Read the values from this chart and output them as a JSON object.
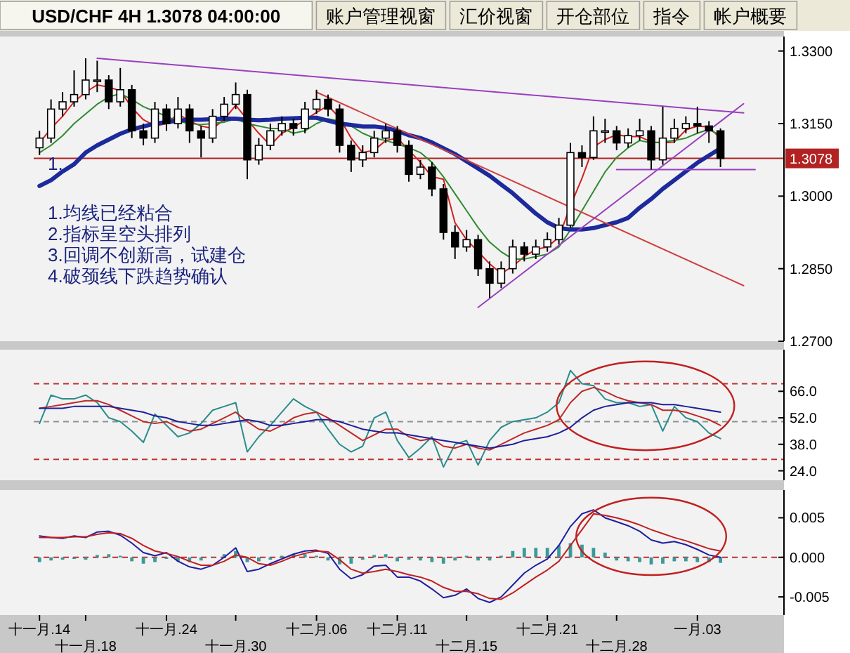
{
  "chart_data": [
    {
      "type": "other",
      "title": "USD/CHF 4H 1.3078 04:00:00",
      "annotations": [
        "账户管理视窗",
        "汇价视窗",
        "开仓部位",
        "指令",
        "帐户概要"
      ]
    },
    {
      "type": "candlestick",
      "annotations": [
        "1.",
        "1.均线已经粘合",
        "2.指标呈空头排列",
        "3.回调不创新高，试建仓",
        "4.破颈线下跌趋势确认"
      ],
      "categories": [
        null,
        null,
        null,
        null,
        null,
        null,
        null,
        null,
        null,
        null,
        null,
        null,
        null,
        null,
        null,
        null,
        null,
        null,
        null,
        null,
        null,
        null,
        null,
        null,
        null,
        null,
        null,
        null,
        null,
        null,
        null,
        null,
        null,
        null,
        null,
        null,
        null,
        null,
        null,
        null,
        null,
        null,
        null,
        null,
        null,
        null,
        null,
        null,
        null,
        null,
        null,
        null,
        null,
        null,
        null,
        null,
        null,
        null,
        null,
        null,
        null,
        null,
        null,
        null,
        null
      ],
      "ylim": [
        1.27,
        1.333
      ],
      "yticks": [
        {
          "value": 1.27,
          "label": "1.2700"
        },
        {
          "value": 1.285,
          "label": "1.2850"
        },
        {
          "value": 1.3,
          "label": "1.3000"
        },
        {
          "value": 1.315,
          "label": "1.3150"
        },
        {
          "value": 1.33,
          "label": "1.3300"
        }
      ],
      "ohlc": [
        [
          1.31,
          1.3135,
          1.3085,
          1.312
        ],
        [
          1.312,
          1.32,
          1.311,
          1.318
        ],
        [
          1.318,
          1.3215,
          1.3165,
          1.3195
        ],
        [
          1.3195,
          1.326,
          1.3185,
          1.321
        ],
        [
          1.321,
          1.3285,
          1.32,
          1.324
        ],
        [
          1.324,
          1.328,
          1.3215,
          1.324
        ],
        [
          1.324,
          1.325,
          1.318,
          1.3195
        ],
        [
          1.3195,
          1.3265,
          1.3185,
          1.322
        ],
        [
          1.322,
          1.323,
          1.312,
          1.3135
        ],
        [
          1.3135,
          1.315,
          1.3105,
          1.312
        ],
        [
          1.312,
          1.3195,
          1.311,
          1.318
        ],
        [
          1.318,
          1.319,
          1.3135,
          1.315
        ],
        [
          1.315,
          1.3205,
          1.314,
          1.318
        ],
        [
          1.318,
          1.319,
          1.311,
          1.3135
        ],
        [
          1.3135,
          1.3145,
          1.308,
          1.312
        ],
        [
          1.312,
          1.318,
          1.311,
          1.3165
        ],
        [
          1.3165,
          1.3205,
          1.3155,
          1.319
        ],
        [
          1.319,
          1.3235,
          1.318,
          1.321
        ],
        [
          1.321,
          1.322,
          1.3035,
          1.3075
        ],
        [
          1.3075,
          1.312,
          1.3065,
          1.3105
        ],
        [
          1.3105,
          1.315,
          1.3095,
          1.3135
        ],
        [
          1.3135,
          1.3165,
          1.3125,
          1.315
        ],
        [
          1.315,
          1.316,
          1.3125,
          1.314
        ],
        [
          1.314,
          1.3195,
          1.313,
          1.318
        ],
        [
          1.318,
          1.322,
          1.317,
          1.32
        ],
        [
          1.32,
          1.321,
          1.3165,
          1.318
        ],
        [
          1.318,
          1.319,
          1.309,
          1.3105
        ],
        [
          1.3105,
          1.3115,
          1.305,
          1.3075
        ],
        [
          1.3075,
          1.3105,
          1.306,
          1.309
        ],
        [
          1.309,
          1.3135,
          1.308,
          1.312
        ],
        [
          1.312,
          1.315,
          1.311,
          1.3135
        ],
        [
          1.3135,
          1.3145,
          1.309,
          1.3105
        ],
        [
          1.3105,
          1.3115,
          1.303,
          1.3045
        ],
        [
          1.3045,
          1.3075,
          1.3035,
          1.306
        ],
        [
          1.306,
          1.307,
          1.3,
          1.3015
        ],
        [
          1.3015,
          1.3025,
          1.291,
          1.2925
        ],
        [
          1.2925,
          1.294,
          1.287,
          1.2895
        ],
        [
          1.2895,
          1.293,
          1.2885,
          1.291
        ],
        [
          1.291,
          1.292,
          1.2835,
          1.285
        ],
        [
          1.285,
          1.2865,
          1.279,
          1.282
        ],
        [
          1.282,
          1.2865,
          1.281,
          1.285
        ],
        [
          1.285,
          1.291,
          1.284,
          1.2895
        ],
        [
          1.2895,
          1.2905,
          1.2865,
          1.288
        ],
        [
          1.288,
          1.291,
          1.287,
          1.2895
        ],
        [
          1.2895,
          1.2925,
          1.2885,
          1.291
        ],
        [
          1.291,
          1.2955,
          1.29,
          1.294
        ],
        [
          1.294,
          1.311,
          1.2935,
          1.309
        ],
        [
          1.309,
          1.3105,
          1.306,
          1.308
        ],
        [
          1.308,
          1.3165,
          1.3075,
          1.3135
        ],
        [
          1.3135,
          1.316,
          1.311,
          1.3135
        ],
        [
          1.3135,
          1.3145,
          1.3095,
          1.311
        ],
        [
          1.311,
          1.314,
          1.31,
          1.3125
        ],
        [
          1.3125,
          1.316,
          1.3115,
          1.3135
        ],
        [
          1.3135,
          1.3145,
          1.3055,
          1.3075
        ],
        [
          1.3075,
          1.3185,
          1.3065,
          1.312
        ],
        [
          1.312,
          1.316,
          1.311,
          1.314
        ],
        [
          1.314,
          1.3165,
          1.313,
          1.315
        ],
        [
          1.315,
          1.3185,
          1.313,
          1.3145
        ],
        [
          1.3145,
          1.3155,
          1.311,
          1.3135
        ],
        [
          1.3135,
          1.314,
          1.306,
          1.3078
        ],
        null,
        null,
        null,
        null,
        null
      ],
      "series": [
        {
          "type": "line",
          "color": "#d42020",
          "values": [
            1.311,
            1.314,
            1.3165,
            1.3195,
            1.3215,
            1.323,
            1.3225,
            1.3218,
            1.3183,
            1.3158,
            1.3145,
            1.315,
            1.317,
            1.3155,
            1.3145,
            1.314,
            1.3158,
            1.3188,
            1.3158,
            1.313,
            1.3105,
            1.313,
            1.3142,
            1.3157,
            1.3173,
            1.3187,
            1.3162,
            1.312,
            1.309,
            1.3095,
            1.3115,
            1.312,
            1.3095,
            1.307,
            1.304,
            1.3035,
            1.2945,
            1.291,
            1.2885,
            1.286,
            1.284,
            1.2855,
            1.2875,
            1.289,
            1.2895,
            1.2915,
            1.298,
            1.3037,
            1.3102,
            1.3117,
            1.3127,
            1.3123,
            1.3123,
            1.3112,
            1.311,
            1.3112,
            1.3137,
            1.3145,
            1.3143,
            1.3119,
            null,
            null,
            null,
            null,
            null
          ]
        },
        {
          "type": "line",
          "color": "#2e8b2e",
          "values": [
            1.309,
            1.3105,
            1.3125,
            1.315,
            1.317,
            1.319,
            1.3205,
            1.3212,
            1.32,
            1.3185,
            1.3175,
            1.3165,
            1.3155,
            1.315,
            1.3148,
            1.315,
            1.3153,
            1.316,
            1.315,
            1.3145,
            1.314,
            1.314,
            1.313,
            1.3135,
            1.315,
            1.316,
            1.3155,
            1.3145,
            1.313,
            1.312,
            1.3115,
            1.3108,
            1.31,
            1.309,
            1.307,
            1.304,
            1.3005,
            1.297,
            1.2935,
            1.2905,
            1.2885,
            1.287,
            1.287,
            1.2875,
            1.288,
            1.2895,
            1.293,
            1.297,
            1.301,
            1.305,
            1.308,
            1.31,
            1.3115,
            1.311,
            1.3112,
            1.3115,
            1.312,
            1.313,
            1.3138,
            1.3125,
            null,
            null,
            null,
            null,
            null
          ]
        },
        {
          "type": "line",
          "color": "#1c2a9c",
          "values": [
            1.3021,
            1.3033,
            1.3051,
            1.3066,
            1.309,
            1.3105,
            1.3117,
            1.3129,
            1.3138,
            1.3144,
            1.315,
            1.3153,
            1.3156,
            1.3158,
            1.3158,
            1.3159,
            1.316,
            1.316,
            1.3158,
            1.3157,
            1.3158,
            1.316,
            1.3161,
            1.3162,
            1.3162,
            1.3156,
            1.315,
            1.3147,
            1.3144,
            1.3144,
            1.3141,
            1.3135,
            1.3126,
            1.312,
            1.3111,
            1.3099,
            1.3087,
            1.3072,
            1.3057,
            1.3042,
            1.3024,
            1.3006,
            1.2985,
            1.2964,
            1.2946,
            1.2934,
            1.2931,
            1.2931,
            1.2934,
            1.294,
            1.2946,
            1.2955,
            1.2976,
            1.2994,
            1.3015,
            1.3033,
            1.3051,
            1.3069,
            1.3084,
            1.3099,
            null,
            null,
            null,
            null,
            null
          ]
        },
        {
          "type": "line",
          "color": "#9a3fbf",
          "values": [
            null,
            null,
            null,
            null,
            null,
            1.3285,
            null,
            null,
            null,
            null,
            null,
            null,
            null,
            null,
            null,
            null,
            null,
            null,
            null,
            null,
            null,
            null,
            null,
            null,
            null,
            null,
            null,
            null,
            null,
            null,
            null,
            null,
            null,
            null,
            null,
            null,
            null,
            null,
            null,
            null,
            null,
            null,
            null,
            null,
            null,
            null,
            null,
            null,
            null,
            null,
            null,
            null,
            null,
            null,
            null,
            null,
            null,
            null,
            null,
            null,
            null,
            1.3172,
            null,
            null,
            null
          ]
        },
        {
          "type": "line",
          "color": "#d04040",
          "values": [
            null,
            null,
            null,
            null,
            null,
            null,
            null,
            null,
            null,
            null,
            null,
            null,
            null,
            null,
            null,
            null,
            null,
            null,
            null,
            null,
            null,
            null,
            null,
            null,
            1.3215,
            null,
            null,
            null,
            null,
            null,
            null,
            null,
            null,
            null,
            null,
            null,
            null,
            null,
            null,
            null,
            null,
            null,
            null,
            null,
            null,
            null,
            null,
            null,
            null,
            null,
            null,
            null,
            null,
            null,
            null,
            null,
            null,
            null,
            null,
            null,
            null,
            1.2815,
            null,
            null,
            null
          ]
        },
        {
          "type": "line",
          "color": "#9a3fbf",
          "values": [
            null,
            null,
            null,
            null,
            null,
            null,
            null,
            null,
            null,
            null,
            null,
            null,
            null,
            null,
            null,
            null,
            null,
            null,
            null,
            null,
            null,
            null,
            null,
            null,
            null,
            null,
            null,
            null,
            null,
            null,
            null,
            null,
            null,
            null,
            null,
            null,
            null,
            null,
            1.277,
            null,
            null,
            null,
            null,
            null,
            null,
            null,
            null,
            null,
            null,
            null,
            null,
            null,
            null,
            null,
            null,
            null,
            null,
            null,
            null,
            null,
            null,
            1.3191,
            null,
            null,
            null
          ]
        },
        {
          "type": "line",
          "color": "#9a3fbf",
          "values": [
            null,
            null,
            null,
            null,
            null,
            null,
            null,
            null,
            null,
            null,
            null,
            null,
            null,
            null,
            null,
            null,
            null,
            null,
            null,
            null,
            null,
            null,
            null,
            null,
            null,
            null,
            null,
            null,
            null,
            null,
            null,
            null,
            null,
            null,
            null,
            null,
            null,
            null,
            null,
            null,
            null,
            null,
            null,
            null,
            null,
            null,
            null,
            null,
            null,
            null,
            1.3055,
            null,
            null,
            null,
            null,
            null,
            null,
            null,
            null,
            null,
            null,
            null,
            1.3055,
            null,
            null
          ]
        }
      ],
      "ref_lines": [
        {
          "axis": "y",
          "value": 1.3078,
          "label": "1.3078",
          "color": "#b22222"
        }
      ]
    },
    {
      "type": "line",
      "categories": [
        null,
        null,
        null,
        null,
        null,
        null,
        null,
        null,
        null,
        null,
        null,
        null,
        null,
        null,
        null,
        null,
        null,
        null,
        null,
        null,
        null,
        null,
        null,
        null,
        null,
        null,
        null,
        null,
        null,
        null,
        null,
        null,
        null,
        null,
        null,
        null,
        null,
        null,
        null,
        null,
        null,
        null,
        null,
        null,
        null,
        null,
        null,
        null,
        null,
        null,
        null,
        null,
        null,
        null,
        null,
        null,
        null,
        null,
        null,
        null,
        null,
        null,
        null,
        null,
        null
      ],
      "ylim": [
        19,
        88
      ],
      "yticks": [
        {
          "value": 24,
          "label": "24.0"
        },
        {
          "value": 38,
          "label": "38.0"
        },
        {
          "value": 52,
          "label": "52.0"
        },
        {
          "value": 66,
          "label": "66.0"
        }
      ],
      "series": [
        {
          "color": "#2a8c8c",
          "values": [
            49,
            64,
            62,
            62,
            64,
            60,
            52,
            50,
            45,
            39,
            54,
            48,
            42,
            44,
            49,
            56,
            58,
            60,
            34,
            42,
            48,
            55,
            62,
            58,
            55,
            46,
            38,
            34,
            37,
            52,
            55,
            40,
            31,
            36,
            42,
            26,
            38,
            40,
            27,
            40,
            47,
            50,
            51,
            52,
            55,
            60,
            77,
            70,
            69,
            62,
            60,
            60,
            58,
            59,
            45,
            58,
            52,
            50,
            44,
            41,
            null,
            null,
            null,
            null,
            null
          ]
        },
        {
          "color": "#c02828",
          "values": [
            57,
            58,
            59,
            60,
            61,
            61,
            59,
            56,
            53,
            50,
            49,
            50,
            47,
            45,
            46,
            49,
            52,
            55,
            50,
            46,
            45,
            48,
            52,
            54,
            55,
            52,
            48,
            44,
            40,
            43,
            46,
            46,
            42,
            40,
            41,
            37,
            36,
            38,
            36,
            35,
            38,
            41,
            44,
            46,
            48,
            51,
            60,
            66,
            68,
            66,
            63,
            61,
            60,
            59,
            56,
            56,
            55,
            53,
            51,
            48,
            null,
            null,
            null,
            null,
            null
          ]
        },
        {
          "color": "#1f1f99",
          "values": [
            57,
            57,
            57,
            58,
            58,
            58,
            58,
            57,
            56,
            55,
            53,
            52,
            50,
            49,
            48,
            48,
            49,
            50,
            51,
            50,
            48,
            48,
            49,
            50,
            51,
            51,
            50,
            48,
            46,
            45,
            44,
            44,
            43,
            42,
            41,
            40,
            39,
            38,
            37,
            36,
            37,
            38,
            40,
            41,
            42,
            44,
            47,
            52,
            56,
            58,
            59,
            60,
            60,
            60,
            59,
            59,
            58,
            57,
            56,
            55,
            null,
            null,
            null,
            null,
            null
          ]
        }
      ],
      "ref_lines": [
        {
          "axis": "y",
          "value": 70,
          "color": "#c03030",
          "line_style": "dashed"
        },
        {
          "axis": "y",
          "value": 50,
          "color": "#909090",
          "line_style": "dashed"
        },
        {
          "axis": "y",
          "value": 30,
          "color": "#c03030",
          "line_style": "dashed"
        }
      ]
    },
    {
      "type": "line",
      "categories": [
        "十一月.14",
        null,
        null,
        null,
        "十一月.18",
        null,
        null,
        null,
        null,
        null,
        null,
        "十一月.24",
        null,
        null,
        null,
        null,
        null,
        "十一月.30",
        null,
        null,
        null,
        null,
        null,
        null,
        "十二月.06",
        null,
        null,
        null,
        null,
        null,
        null,
        "十二月.11",
        null,
        null,
        null,
        null,
        null,
        "十二月.15",
        null,
        null,
        null,
        null,
        null,
        null,
        "十二月.21",
        null,
        null,
        null,
        null,
        null,
        "十二月.28",
        null,
        null,
        null,
        null,
        null,
        null,
        "一月.03",
        null,
        null,
        null,
        null,
        null,
        null,
        null
      ],
      "ylim": [
        -0.0073,
        0.0085
      ],
      "yticks": [
        {
          "value": -0.005,
          "label": "-0.005"
        },
        {
          "value": 0,
          "label": "0.000"
        },
        {
          "value": 0.005,
          "label": "0.005"
        }
      ],
      "series": [
        {
          "type": "bar",
          "color": "#3a9a9a",
          "values": [
            -0.0006,
            -0.0004,
            -0.0003,
            -0.0002,
            -0.0003,
            0.0003,
            0.0004,
            0.0002,
            -0.0005,
            -0.0008,
            -0.0006,
            -0.0002,
            -0.0005,
            -0.0006,
            -0.0004,
            0,
            0.0004,
            0.0008,
            -0.0006,
            -0.0005,
            -0.0003,
            0.0002,
            0.0004,
            0.0004,
            0.0002,
            -0.0004,
            -0.0009,
            -0.0008,
            -0.0003,
            0.0003,
            0.0004,
            -0.0005,
            -0.0003,
            -0.0004,
            -0.0006,
            -0.0008,
            -0.0004,
            0.0002,
            -0.0004,
            -0.0004,
            0.0002,
            0.0008,
            0.0012,
            0.0012,
            0.0012,
            0.0015,
            0.0018,
            0.0016,
            0.0012,
            0.0006,
            -0.0004,
            -0.0005,
            -0.0006,
            -0.0009,
            -0.0008,
            -0.0005,
            -0.0005,
            -0.0006,
            -0.0006,
            -0.0007,
            null,
            null,
            null,
            null,
            null
          ]
        },
        {
          "type": "line",
          "color": "#1f1fa0",
          "values": [
            0.0027,
            0.0025,
            0.0024,
            0.0027,
            0.0025,
            0.0032,
            0.0033,
            0.0028,
            0.0018,
            0.0006,
            0.0002,
            0.0006,
            -0.0005,
            -0.0012,
            -0.0015,
            -0.001,
            0,
            0.0012,
            -0.0018,
            -0.0015,
            -0.0008,
            -0.0002,
            0.0004,
            0.0008,
            0.0009,
            0.0005,
            -0.0015,
            -0.0027,
            -0.0022,
            -0.0011,
            -0.001,
            -0.0025,
            -0.0025,
            -0.003,
            -0.004,
            -0.0051,
            -0.0048,
            -0.004,
            -0.0052,
            -0.0057,
            -0.005,
            -0.0035,
            -0.002,
            -0.001,
            -0.0002,
            0.0015,
            0.0039,
            0.0055,
            0.006,
            0.005,
            0.0045,
            0.004,
            0.0033,
            0.0022,
            0.0018,
            0.002,
            0.0016,
            0.001,
            0.0003,
            0,
            null,
            null,
            null,
            null,
            null
          ]
        },
        {
          "type": "line",
          "color": "#c02020",
          "values": [
            0.0025,
            0.0025,
            0.0025,
            0.0026,
            0.0026,
            0.0029,
            0.0031,
            0.003,
            0.0024,
            0.0015,
            0.0008,
            0.0005,
            0.0001,
            -0.0005,
            -0.001,
            -0.001,
            -0.0005,
            0.0003,
            0,
            -0.0008,
            -0.001,
            -0.0005,
            0.0001,
            0.0005,
            0.0008,
            0.0007,
            -0.0003,
            -0.0015,
            -0.002,
            -0.0018,
            -0.0015,
            -0.0018,
            -0.0022,
            -0.0025,
            -0.003,
            -0.0038,
            -0.0043,
            -0.0043,
            -0.0046,
            -0.0052,
            -0.0053,
            -0.0045,
            -0.0035,
            -0.0025,
            -0.0016,
            -0.0005,
            0.0015,
            0.0035,
            0.0055,
            0.0053,
            0.005,
            0.0046,
            0.0041,
            0.0035,
            0.003,
            0.0025,
            0.0021,
            0.0016,
            0.0011,
            0.0008,
            null,
            null,
            null,
            null,
            null
          ]
        }
      ],
      "ref_lines": [
        {
          "axis": "y",
          "value": 0,
          "color": "#c03030",
          "line_style": "dashed"
        }
      ]
    }
  ]
}
